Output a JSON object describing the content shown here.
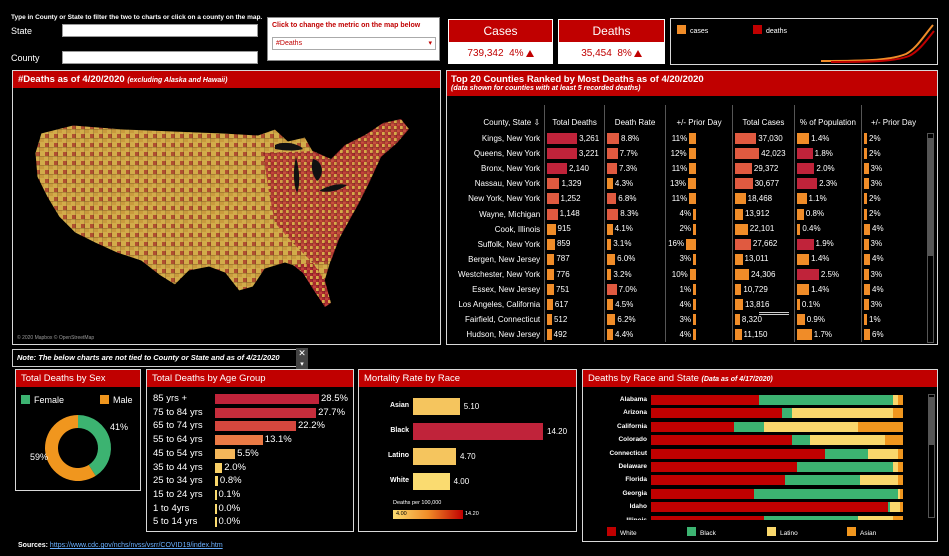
{
  "filters": {
    "instruction": "Type in County or State to filter the two to charts or click on a county on the map.",
    "state_label": "State",
    "state_value": "",
    "county_label": "County",
    "county_value": ""
  },
  "metric": {
    "instruction": "Click to change the metric on the map below",
    "selected": "#Deaths"
  },
  "kpis": {
    "cases_title": "Cases",
    "cases_value": "739,342",
    "cases_pct": "4%",
    "deaths_title": "Deaths",
    "deaths_value": "35,454",
    "deaths_pct": "8%"
  },
  "trend_legend": {
    "cases": "cases",
    "deaths": "deaths",
    "cases_color": "#f08c28",
    "deaths_color": "#c00000"
  },
  "map": {
    "title": "#Deaths as of 4/20/2020",
    "subtitle": "(excluding Alaska and Hawaii)",
    "credit": "© 2020 Mapbox © OpenStreetMap"
  },
  "counties": {
    "title": "Top 20 Counties Ranked by Most Deaths  as of 4/20/2020",
    "subtitle": "(data shown for counties with at least 5 recorded deaths)",
    "columns": [
      "County, State",
      "Total Deaths",
      "Death Rate",
      "+/- Prior Day",
      "Total Cases",
      "% of Population",
      "+/- Prior Day"
    ],
    "rows": [
      {
        "name": "Kings, New York",
        "deaths": "3,261",
        "rate": "8.8%",
        "prior": "11%",
        "cases": "37,030",
        "pop": "1.4%",
        "prior2": "2%",
        "db": 1.0,
        "rb": 1.0,
        "pb": 0.69,
        "cb": 0.88,
        "ob": 0.56,
        "p2b": 0.5
      },
      {
        "name": "Queens, New York",
        "deaths": "3,221",
        "rate": "7.7%",
        "prior": "12%",
        "cases": "42,023",
        "pop": "1.8%",
        "prior2": "2%",
        "db": 0.99,
        "rb": 0.88,
        "pb": 0.75,
        "cb": 1.0,
        "ob": 0.72,
        "p2b": 0.5
      },
      {
        "name": "Bronx, New York",
        "deaths": "2,140",
        "rate": "7.3%",
        "prior": "11%",
        "cases": "29,372",
        "pop": "2.0%",
        "prior2": "3%",
        "db": 0.66,
        "rb": 0.83,
        "pb": 0.69,
        "cb": 0.7,
        "ob": 0.8,
        "p2b": 0.75
      },
      {
        "name": "Nassau, New York",
        "deaths": "1,329",
        "rate": "4.3%",
        "prior": "13%",
        "cases": "30,677",
        "pop": "2.3%",
        "prior2": "3%",
        "db": 0.41,
        "rb": 0.49,
        "pb": 0.81,
        "cb": 0.73,
        "ob": 0.92,
        "p2b": 0.75
      },
      {
        "name": "New York, New York",
        "deaths": "1,252",
        "rate": "6.8%",
        "prior": "11%",
        "cases": "18,468",
        "pop": "1.1%",
        "prior2": "2%",
        "db": 0.38,
        "rb": 0.77,
        "pb": 0.69,
        "cb": 0.44,
        "ob": 0.44,
        "p2b": 0.5
      },
      {
        "name": "Wayne, Michigan",
        "deaths": "1,148",
        "rate": "8.3%",
        "prior": "4%",
        "cases": "13,912",
        "pop": "0.8%",
        "prior2": "2%",
        "db": 0.35,
        "rb": 0.94,
        "pb": 0.25,
        "cb": 0.33,
        "ob": 0.32,
        "p2b": 0.5
      },
      {
        "name": "Cook, Illinois",
        "deaths": "915",
        "rate": "4.1%",
        "prior": "2%",
        "cases": "22,101",
        "pop": "0.4%",
        "prior2": "4%",
        "db": 0.28,
        "rb": 0.47,
        "pb": 0.13,
        "cb": 0.53,
        "ob": 0.16,
        "p2b": 1.0
      },
      {
        "name": "Suffolk, New York",
        "deaths": "859",
        "rate": "3.1%",
        "prior": "16%",
        "cases": "27,662",
        "pop": "1.9%",
        "prior2": "3%",
        "db": 0.26,
        "rb": 0.35,
        "pb": 1.0,
        "cb": 0.66,
        "ob": 0.76,
        "p2b": 0.75
      },
      {
        "name": "Bergen, New Jersey",
        "deaths": "787",
        "rate": "6.0%",
        "prior": "3%",
        "cases": "13,011",
        "pop": "1.4%",
        "prior2": "4%",
        "db": 0.24,
        "rb": 0.68,
        "pb": 0.19,
        "cb": 0.31,
        "ob": 0.56,
        "p2b": 1.0
      },
      {
        "name": "Westchester, New York",
        "deaths": "776",
        "rate": "3.2%",
        "prior": "10%",
        "cases": "24,306",
        "pop": "2.5%",
        "prior2": "3%",
        "db": 0.24,
        "rb": 0.36,
        "pb": 0.63,
        "cb": 0.58,
        "ob": 1.0,
        "p2b": 0.75
      },
      {
        "name": "Essex, New Jersey",
        "deaths": "751",
        "rate": "7.0%",
        "prior": "1%",
        "cases": "10,729",
        "pop": "1.4%",
        "prior2": "4%",
        "db": 0.23,
        "rb": 0.8,
        "pb": 0.06,
        "cb": 0.26,
        "ob": 0.56,
        "p2b": 1.0
      },
      {
        "name": "Los Angeles, California",
        "deaths": "617",
        "rate": "4.5%",
        "prior": "4%",
        "cases": "13,816",
        "pop": "0.1%",
        "prior2": "3%",
        "db": 0.19,
        "rb": 0.51,
        "pb": 0.25,
        "cb": 0.33,
        "ob": 0.04,
        "p2b": 0.75
      },
      {
        "name": "Fairfield, Connecticut",
        "deaths": "512",
        "rate": "6.2%",
        "prior": "3%",
        "cases": "8,320",
        "pop": "0.9%",
        "prior2": "1%",
        "db": 0.16,
        "rb": 0.7,
        "pb": 0.19,
        "cb": 0.2,
        "ob": 0.36,
        "p2b": 0.25
      },
      {
        "name": "Hudson, New Jersey",
        "deaths": "492",
        "rate": "4.4%",
        "prior": "4%",
        "cases": "11,150",
        "pop": "1.7%",
        "prior2": "6%",
        "db": 0.15,
        "rb": 0.5,
        "pb": 0.25,
        "cb": 0.27,
        "ob": 0.68,
        "p2b": 1.0
      }
    ]
  },
  "note": "Note:  The below charts are not tied to County or State and as of 4/21/2020",
  "sex": {
    "title": "Total Deaths by Sex",
    "female_label": "Female",
    "male_label": "Male",
    "female_pct": "41%",
    "male_pct": "59%",
    "female_value": 41,
    "male_value": 59,
    "female_color": "#3cb371",
    "male_color": "#f0961e"
  },
  "age": {
    "title": "Total Deaths by Age Group",
    "groups": [
      {
        "label": "85 yrs +",
        "pct": "28.5%",
        "value": 28.5,
        "color": "#c0233a"
      },
      {
        "label": "75 to 84 yrs",
        "pct": "27.7%",
        "value": 27.7,
        "color": "#c62d3c"
      },
      {
        "label": "65 to 74 yrs",
        "pct": "22.2%",
        "value": 22.2,
        "color": "#d5473e"
      },
      {
        "label": "55 to 64 yrs",
        "pct": "13.1%",
        "value": 13.1,
        "color": "#eb7a45"
      },
      {
        "label": "45 to 54 yrs",
        "pct": "5.5%",
        "value": 5.5,
        "color": "#f5b75a"
      },
      {
        "label": "35 to 44 yrs",
        "pct": "2.0%",
        "value": 2.0,
        "color": "#f8cf66"
      },
      {
        "label": "25 to 34 yrs",
        "pct": "0.8%",
        "value": 0.8,
        "color": "#f9d76c"
      },
      {
        "label": "15 to 24 yrs",
        "pct": "0.1%",
        "value": 0.1,
        "color": "#fadb70"
      },
      {
        "label": "1 to 4yrs",
        "pct": "0.0%",
        "value": 0.0,
        "color": "#fadb70"
      },
      {
        "label": "5 to 14 yrs",
        "pct": "0.0%",
        "value": 0.0,
        "color": "#fadb70"
      }
    ]
  },
  "mortality": {
    "title": "Mortality Rate by Race",
    "rows": [
      {
        "label": "Asian",
        "value": 5.1,
        "text": "5.10",
        "color": "#f5c55e"
      },
      {
        "label": "Black",
        "value": 14.2,
        "text": "14.20",
        "color": "#c0233a"
      },
      {
        "label": "Latino",
        "value": 4.7,
        "text": "4.70",
        "color": "#f5c55e"
      },
      {
        "label": "White",
        "value": 4.0,
        "text": "4.00",
        "color": "#fadb70"
      }
    ],
    "legend_title": "Deaths per 100,000",
    "legend_min": "4.00",
    "legend_max": "14.20"
  },
  "race_state": {
    "title": "Deaths by Race and State",
    "subtitle": "(Data as of 4/17/2020)",
    "legend": [
      {
        "label": "White",
        "color": "#c00000"
      },
      {
        "label": "Black",
        "color": "#3cb371"
      },
      {
        "label": "Latino",
        "color": "#f9d76c"
      },
      {
        "label": "Asian",
        "color": "#f0961e"
      }
    ],
    "states": [
      {
        "name": "Alabama",
        "w": 0.43,
        "b": 0.53,
        "l": 0.02,
        "a": 0.02
      },
      {
        "name": "Arizona",
        "w": 0.52,
        "b": 0.04,
        "l": 0.4,
        "a": 0.04
      },
      {
        "name": "California",
        "w": 0.33,
        "b": 0.12,
        "l": 0.37,
        "a": 0.18
      },
      {
        "name": "Colorado",
        "w": 0.56,
        "b": 0.07,
        "l": 0.3,
        "a": 0.07
      },
      {
        "name": "Connecticut",
        "w": 0.69,
        "b": 0.17,
        "l": 0.12,
        "a": 0.02
      },
      {
        "name": "Delaware",
        "w": 0.58,
        "b": 0.38,
        "l": 0.02,
        "a": 0.02
      },
      {
        "name": "Florida",
        "w": 0.53,
        "b": 0.3,
        "l": 0.15,
        "a": 0.02
      },
      {
        "name": "Georgia",
        "w": 0.41,
        "b": 0.57,
        "l": 0.01,
        "a": 0.01
      },
      {
        "name": "Idaho",
        "w": 0.94,
        "b": 0.01,
        "l": 0.04,
        "a": 0.01
      },
      {
        "name": "Illinois",
        "w": 0.45,
        "b": 0.37,
        "l": 0.14,
        "a": 0.04
      }
    ]
  },
  "sources": {
    "label": "Sources:",
    "link": "https://www.cdc.gov/nchs/nvss/vsrr/COVID19/index.htm"
  }
}
